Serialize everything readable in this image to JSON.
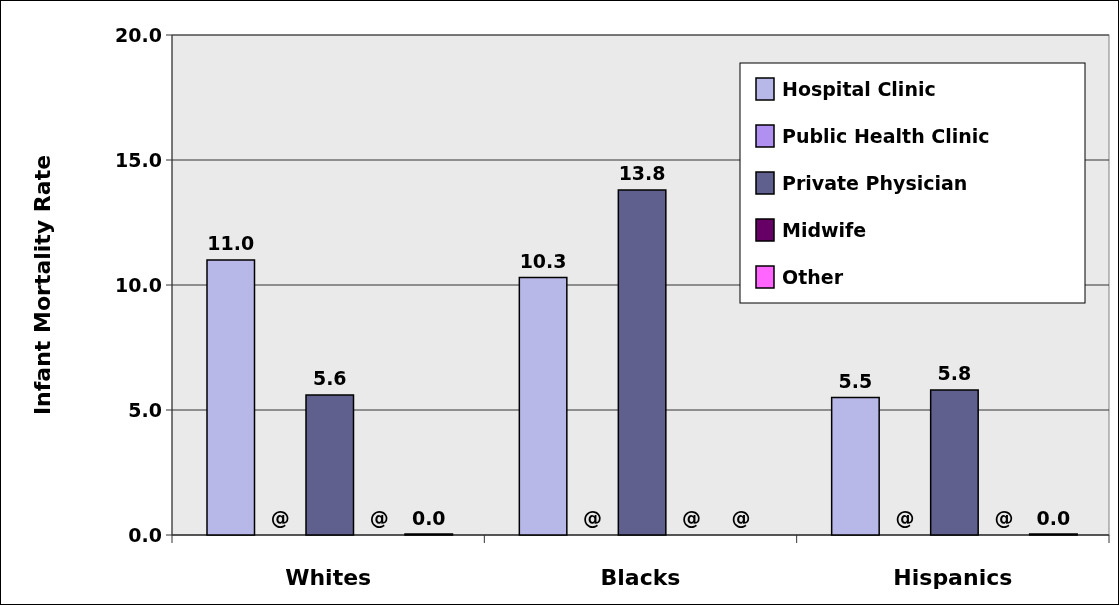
{
  "chart_data": {
    "type": "bar",
    "ylabel": "Infant Mortality Rate",
    "categories": [
      "Whites",
      "Blacks",
      "Hispanics"
    ],
    "series": [
      {
        "name": "Hospital Clinic",
        "color": "#b8b8e8",
        "values": [
          11.0,
          10.3,
          5.5
        ],
        "value_labels": [
          "11.0",
          "10.3",
          "5.5"
        ]
      },
      {
        "name": "Public Health Clinic",
        "color": "#b090f0",
        "values": [
          null,
          null,
          null
        ],
        "value_labels": [
          "@",
          "@",
          "@"
        ]
      },
      {
        "name": "Private Physician",
        "color": "#60608f",
        "values": [
          5.6,
          13.8,
          5.8
        ],
        "value_labels": [
          "5.6",
          "13.8",
          "5.8"
        ]
      },
      {
        "name": "Midwife",
        "color": "#660066",
        "values": [
          null,
          null,
          null
        ],
        "value_labels": [
          "@",
          "@",
          "@"
        ]
      },
      {
        "name": "Other",
        "color": "#ff66ff",
        "values": [
          0.0,
          null,
          0.0
        ],
        "value_labels": [
          "0.0",
          "@",
          "0.0"
        ]
      }
    ],
    "ylim": [
      0,
      20
    ],
    "yticks": [
      {
        "value": 0,
        "label": "0.0"
      },
      {
        "value": 5,
        "label": "5.0"
      },
      {
        "value": 10,
        "label": "10.0"
      },
      {
        "value": 15,
        "label": "15.0"
      },
      {
        "value": 20,
        "label": "20.0"
      }
    ],
    "grid": "y",
    "legend": "top right"
  }
}
